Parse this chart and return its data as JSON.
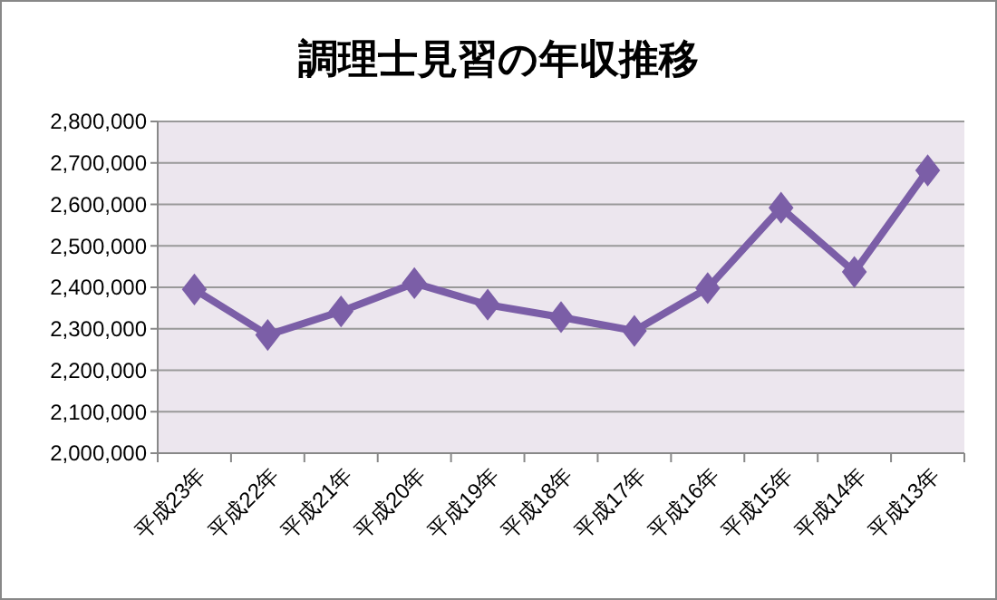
{
  "chart_data": {
    "type": "line",
    "title": "調理士見習の年収推移",
    "categories": [
      "平成23年",
      "平成22年",
      "平成21年",
      "平成20年",
      "平成19年",
      "平成18年",
      "平成17年",
      "平成16年",
      "平成15年",
      "平成14年",
      "平成13年"
    ],
    "series": [
      {
        "color": "#7b5ea7",
        "values": [
          2395000,
          2285000,
          2342000,
          2410000,
          2358000,
          2328000,
          2295000,
          2398000,
          2592000,
          2437000,
          2682000
        ]
      }
    ],
    "ylim": [
      2000000,
      2800000
    ],
    "yticks": [
      {
        "value": 2000000,
        "label": "2,000,000"
      },
      {
        "value": 2100000,
        "label": "2,100,000"
      },
      {
        "value": 2200000,
        "label": "2,200,000"
      },
      {
        "value": 2300000,
        "label": "2,300,000"
      },
      {
        "value": 2400000,
        "label": "2,400,000"
      },
      {
        "value": 2500000,
        "label": "2,500,000"
      },
      {
        "value": 2600000,
        "label": "2,600,000"
      },
      {
        "value": 2700000,
        "label": "2,700,000"
      },
      {
        "value": 2800000,
        "label": "2,800,000"
      }
    ],
    "grid": "y",
    "marker": "diamond",
    "line_style": "solid"
  }
}
